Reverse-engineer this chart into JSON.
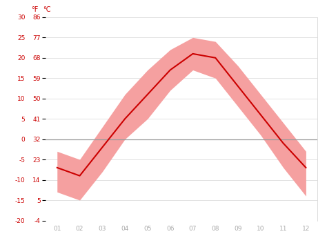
{
  "months": [
    1,
    2,
    3,
    4,
    5,
    6,
    7,
    8,
    9,
    10,
    11,
    12
  ],
  "month_labels": [
    "01",
    "02",
    "03",
    "04",
    "05",
    "06",
    "07",
    "08",
    "09",
    "10",
    "11",
    "12"
  ],
  "avg_temp": [
    -7,
    -9,
    -2,
    5,
    11,
    17,
    21,
    20,
    13,
    6,
    -1,
    -7
  ],
  "temp_max": [
    -3,
    -5,
    3,
    11,
    17,
    22,
    25,
    24,
    18,
    11,
    4,
    -3
  ],
  "temp_min": [
    -13,
    -15,
    -8,
    0,
    5,
    12,
    17,
    15,
    8,
    1,
    -7,
    -14
  ],
  "ylim_c": [
    -20,
    30
  ],
  "yticks_c": [
    -20,
    -15,
    -10,
    -5,
    0,
    5,
    10,
    15,
    20,
    25,
    30
  ],
  "yticks_f": [
    -4,
    5,
    14,
    23,
    32,
    41,
    50,
    59,
    68,
    77,
    86
  ],
  "line_color": "#cc0000",
  "band_color": "#f5a0a0",
  "zero_line_color": "#999999",
  "bg_color": "#ffffff",
  "grid_color": "#dddddd",
  "label_color": "#cc0000",
  "xtick_color": "#aaaaaa"
}
